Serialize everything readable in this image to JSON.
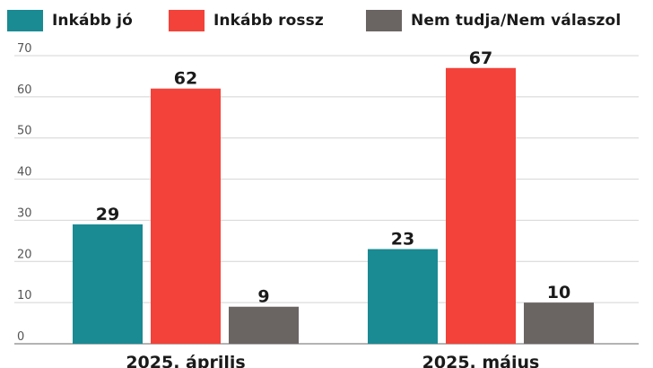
{
  "chart_data": {
    "type": "bar",
    "categories": [
      "2025. április",
      "2025. május"
    ],
    "series": [
      {
        "name": "Inkább jó",
        "color": "#1a8a93",
        "values": [
          29,
          23
        ]
      },
      {
        "name": "Inkább rossz",
        "color": "#f2423a",
        "values": [
          62,
          67
        ]
      },
      {
        "name": "Nem tudja/Nem válaszol",
        "color": "#6a6463",
        "values": [
          9,
          10
        ]
      }
    ],
    "yticks": [
      0,
      10,
      20,
      30,
      40,
      50,
      60,
      70
    ],
    "ylim": [
      0,
      70
    ],
    "grid": true,
    "legend_position": "top"
  }
}
